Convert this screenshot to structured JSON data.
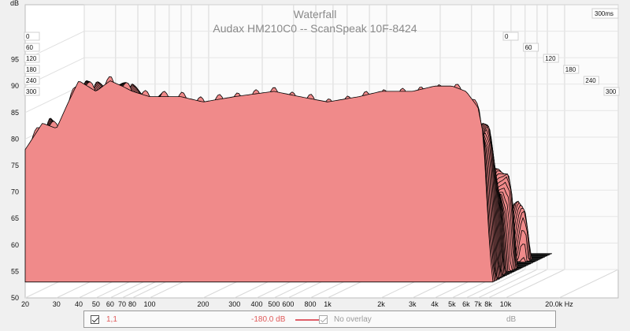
{
  "chart_data": {
    "type": "area",
    "title": "Waterfall",
    "subtitle": "Audax HM210C0 -- ScanSpeak 10F-8424",
    "x_unit": "Hz",
    "y_unit": "dB",
    "x_scale": "log",
    "x_ticks": [
      20,
      30,
      40,
      50,
      60,
      70,
      80,
      100,
      200,
      300,
      400,
      500,
      600,
      800,
      1000,
      2000,
      3000,
      4000,
      5000,
      6000,
      7000,
      8000,
      10000,
      20000
    ],
    "x_tick_labels": [
      "20",
      "30",
      "40",
      "50",
      "60",
      "70",
      "80",
      "100",
      "200",
      "300",
      "400",
      "500",
      "600",
      "800",
      "1k",
      "2k",
      "3k",
      "4k",
      "5k",
      "6k",
      "7k",
      "8k",
      "10k",
      "20.0k Hz"
    ],
    "xlim": [
      20,
      20000
    ],
    "y_ticks": [
      50,
      55,
      60,
      65,
      70,
      75,
      80,
      85,
      90,
      95
    ],
    "ylim": [
      50,
      100
    ],
    "time_unit": "ms",
    "time_ticks": [
      0,
      60,
      120,
      180,
      240,
      300
    ],
    "time_max_label": "300ms",
    "grid": true,
    "slices_ms": [
      0,
      6,
      12,
      18,
      24,
      30,
      36,
      42,
      48,
      54,
      60,
      66,
      72,
      78,
      84,
      90,
      96,
      102,
      108,
      114,
      120,
      126,
      132,
      138,
      144,
      150,
      156,
      162,
      168,
      174,
      180,
      186,
      192,
      198,
      204,
      210,
      216,
      222,
      228,
      234,
      240,
      246,
      252,
      258,
      264,
      270,
      276,
      282,
      288,
      294,
      300
    ],
    "front_response": {
      "x": [
        20,
        25,
        30,
        35,
        40,
        50,
        60,
        70,
        80,
        100,
        150,
        200,
        300,
        500,
        700,
        1000,
        1500,
        2000,
        3000,
        4000,
        5000,
        6000,
        7000,
        8000
      ],
      "y": [
        78,
        83,
        82,
        87,
        91,
        89,
        91,
        90,
        89,
        88,
        88,
        87,
        88,
        89,
        88,
        87,
        88,
        89,
        89,
        90,
        90,
        89,
        86,
        76
      ]
    },
    "colors": {
      "fill": "#f08a8a",
      "line": "#000000",
      "legend_line": "#e0606a"
    }
  },
  "legend": {
    "series_name": "1,1",
    "series_value": "-180.0 dB",
    "overlay_label": "No overlay",
    "unit": "dB",
    "series_checked": true,
    "overlay_checked": true
  }
}
